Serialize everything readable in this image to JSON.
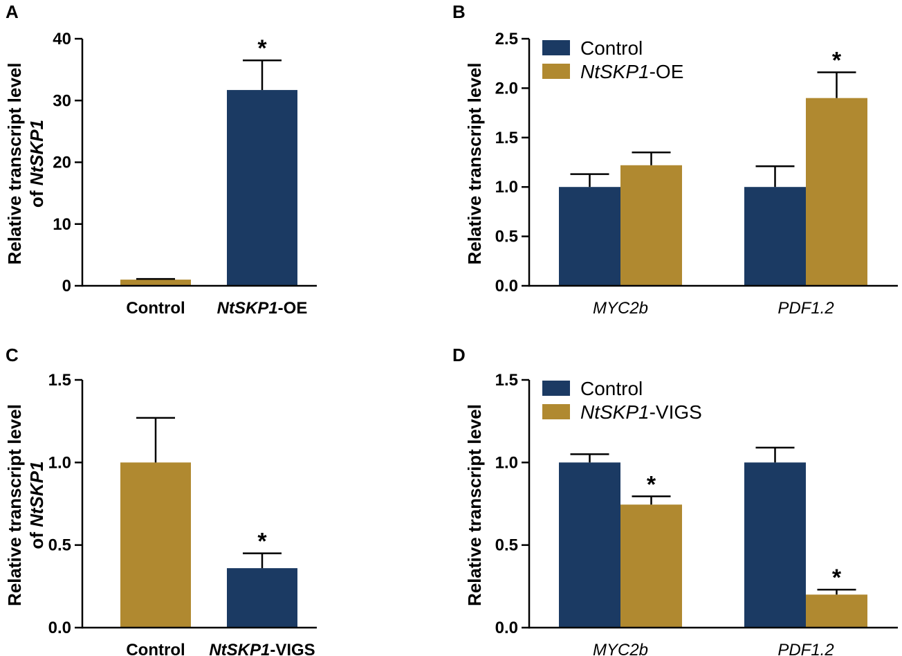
{
  "colors": {
    "navy": "#1b3a63",
    "gold": "#b08930"
  },
  "chart_data": [
    {
      "panel": "A",
      "type": "bar",
      "ylabel": {
        "line1": "Relative transcript level",
        "line2_prefix": "of ",
        "line2_italic": "NtSKP1"
      },
      "yticks": [
        "0",
        "10",
        "20",
        "30",
        "40"
      ],
      "ylim": [
        0,
        40
      ],
      "categories": [
        {
          "italic": "",
          "plain": "Control",
          "bold": true
        },
        {
          "italic": "NtSKP1",
          "plain": "-OE",
          "bold": true
        }
      ],
      "bars": [
        {
          "value": 1.0,
          "error": 0.1,
          "color": "gold",
          "star": ""
        },
        {
          "value": 31.7,
          "error": 4.8,
          "color": "navy",
          "star": "*"
        }
      ]
    },
    {
      "panel": "B",
      "type": "bar",
      "ylabel": {
        "line1": "Relative transcript level"
      },
      "yticks": [
        "0.0",
        "0.5",
        "1.0",
        "1.5",
        "2.0",
        "2.5"
      ],
      "ylim": [
        0,
        2.5
      ],
      "categories": [
        {
          "italic": "MYC2b",
          "plain": "",
          "bold": false
        },
        {
          "italic": "PDF1.2",
          "plain": "",
          "bold": false
        }
      ],
      "legend": [
        {
          "color": "navy",
          "italic": "",
          "plain": "Control"
        },
        {
          "color": "gold",
          "italic": "NtSKP1",
          "plain": "-OE"
        }
      ],
      "series": [
        {
          "name": "Control",
          "color": "navy",
          "values": [
            1.0,
            1.0
          ],
          "errors": [
            0.13,
            0.21
          ],
          "stars": [
            "",
            ""
          ]
        },
        {
          "name": "NtSKP1-OE",
          "color": "gold",
          "values": [
            1.22,
            1.9
          ],
          "errors": [
            0.13,
            0.26
          ],
          "stars": [
            "",
            "*"
          ]
        }
      ]
    },
    {
      "panel": "C",
      "type": "bar",
      "ylabel": {
        "line1": "Relative transcript level",
        "line2_prefix": "of ",
        "line2_italic": "NtSKP1"
      },
      "yticks": [
        "0.0",
        "0.5",
        "1.0",
        "1.5"
      ],
      "ylim": [
        0,
        1.5
      ],
      "categories": [
        {
          "italic": "",
          "plain": "Control",
          "bold": true
        },
        {
          "italic": "NtSKP1",
          "plain": "-VIGS",
          "bold": true
        }
      ],
      "bars": [
        {
          "value": 1.0,
          "error": 0.27,
          "color": "gold",
          "star": ""
        },
        {
          "value": 0.36,
          "error": 0.09,
          "color": "navy",
          "star": "*"
        }
      ]
    },
    {
      "panel": "D",
      "type": "bar",
      "ylabel": {
        "line1": "Relative transcript level"
      },
      "yticks": [
        "0.0",
        "0.5",
        "1.0",
        "1.5"
      ],
      "ylim": [
        0,
        1.5
      ],
      "categories": [
        {
          "italic": "MYC2b",
          "plain": "",
          "bold": false
        },
        {
          "italic": "PDF1.2",
          "plain": "",
          "bold": false
        }
      ],
      "legend": [
        {
          "color": "navy",
          "italic": "",
          "plain": "Control"
        },
        {
          "color": "gold",
          "italic": "NtSKP1",
          "plain": "-VIGS"
        }
      ],
      "series": [
        {
          "name": "Control",
          "color": "navy",
          "values": [
            1.0,
            1.0
          ],
          "errors": [
            0.05,
            0.09
          ],
          "stars": [
            "",
            ""
          ]
        },
        {
          "name": "NtSKP1-VIGS",
          "color": "gold",
          "values": [
            0.745,
            0.2
          ],
          "errors": [
            0.05,
            0.03
          ],
          "stars": [
            "*",
            "*"
          ]
        }
      ]
    }
  ]
}
